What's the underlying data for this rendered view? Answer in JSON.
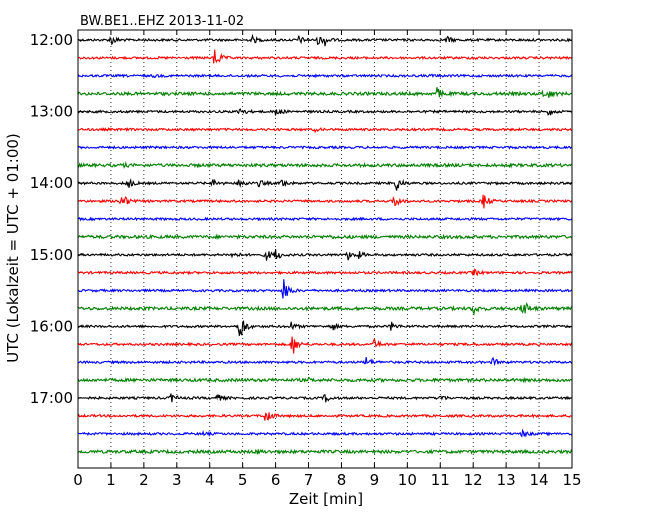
{
  "chart_data": {
    "type": "line",
    "title": "BW.BE1..EHZ 2013-11-02",
    "xlabel": "Zeit  [min]",
    "ylabel": "UTC (Lokalzeit = UTC + 01:00)",
    "xlim": [
      0,
      15
    ],
    "x_ticks": [
      0,
      1,
      2,
      3,
      4,
      5,
      6,
      7,
      8,
      9,
      10,
      11,
      12,
      13,
      14,
      15
    ],
    "grid": true,
    "trace_interval_minutes": 15,
    "y_tick_labels": [
      "12:00",
      "13:00",
      "14:00",
      "15:00",
      "16:00",
      "17:00"
    ],
    "trace_colors": [
      "#000000",
      "#ff0000",
      "#0000ff",
      "#008000"
    ],
    "traces": [
      {
        "start": "12:00",
        "events": [
          [
            1.0,
            0.55
          ],
          [
            5.3,
            0.35
          ],
          [
            6.7,
            0.4
          ],
          [
            7.3,
            0.55
          ],
          [
            7.5,
            0.45
          ],
          [
            11.2,
            0.35
          ]
        ]
      },
      {
        "start": "12:15",
        "events": [
          [
            4.15,
            1.2
          ],
          [
            12.0,
            0.12
          ]
        ]
      },
      {
        "start": "12:30",
        "events": [
          [
            2.3,
            0.12
          ],
          [
            10.7,
            0.1
          ]
        ]
      },
      {
        "start": "12:45",
        "events": [
          [
            10.9,
            0.55
          ],
          [
            14.1,
            0.3
          ],
          [
            14.3,
            0.3
          ]
        ]
      },
      {
        "start": "13:00",
        "events": [
          [
            4.9,
            0.55
          ],
          [
            6.0,
            0.5
          ],
          [
            14.3,
            0.4
          ]
        ]
      },
      {
        "start": "13:15",
        "events": [
          [
            7.2,
            0.12
          ]
        ]
      },
      {
        "start": "13:30",
        "events": []
      },
      {
        "start": "13:45",
        "events": [
          [
            1.4,
            0.12
          ]
        ]
      },
      {
        "start": "14:00",
        "events": [
          [
            1.5,
            0.6
          ],
          [
            4.1,
            0.4
          ],
          [
            4.9,
            0.6
          ],
          [
            5.5,
            0.35
          ],
          [
            6.2,
            0.45
          ],
          [
            9.65,
            0.95
          ]
        ]
      },
      {
        "start": "14:15",
        "events": [
          [
            1.3,
            1.2
          ],
          [
            9.6,
            0.8
          ],
          [
            12.3,
            0.85
          ]
        ]
      },
      {
        "start": "14:30",
        "events": []
      },
      {
        "start": "14:45",
        "events": [
          [
            7.6,
            0.1
          ]
        ]
      },
      {
        "start": "15:00",
        "events": [
          [
            4.7,
            0.35
          ],
          [
            5.7,
            0.65
          ],
          [
            6.0,
            0.6
          ],
          [
            8.2,
            0.5
          ],
          [
            8.5,
            0.35
          ]
        ]
      },
      {
        "start": "15:15",
        "events": [
          [
            12.0,
            0.35
          ]
        ]
      },
      {
        "start": "15:30",
        "events": [
          [
            6.25,
            1.35
          ]
        ]
      },
      {
        "start": "15:45",
        "events": [
          [
            12.0,
            0.55
          ],
          [
            13.5,
            1.15
          ]
        ]
      },
      {
        "start": "16:00",
        "events": [
          [
            4.9,
            1.9
          ],
          [
            6.45,
            0.5
          ],
          [
            7.7,
            0.45
          ],
          [
            9.5,
            0.45
          ]
        ]
      },
      {
        "start": "16:15",
        "events": [
          [
            6.5,
            1.3
          ],
          [
            9.0,
            0.5
          ],
          [
            11.9,
            0.12
          ]
        ]
      },
      {
        "start": "16:30",
        "events": [
          [
            8.75,
            0.55
          ],
          [
            12.6,
            0.4
          ]
        ]
      },
      {
        "start": "16:45",
        "events": [
          [
            7.0,
            0.12
          ]
        ]
      },
      {
        "start": "17:00",
        "events": [
          [
            2.8,
            0.55
          ],
          [
            4.2,
            0.45
          ],
          [
            7.5,
            0.45
          ],
          [
            11.0,
            0.3
          ]
        ]
      },
      {
        "start": "17:15",
        "events": [
          [
            5.7,
            1.0
          ]
        ]
      },
      {
        "start": "17:30",
        "events": [
          [
            3.8,
            0.15
          ],
          [
            13.5,
            0.35
          ]
        ]
      },
      {
        "start": "17:45",
        "events": [
          [
            5.4,
            0.2
          ]
        ]
      }
    ]
  }
}
